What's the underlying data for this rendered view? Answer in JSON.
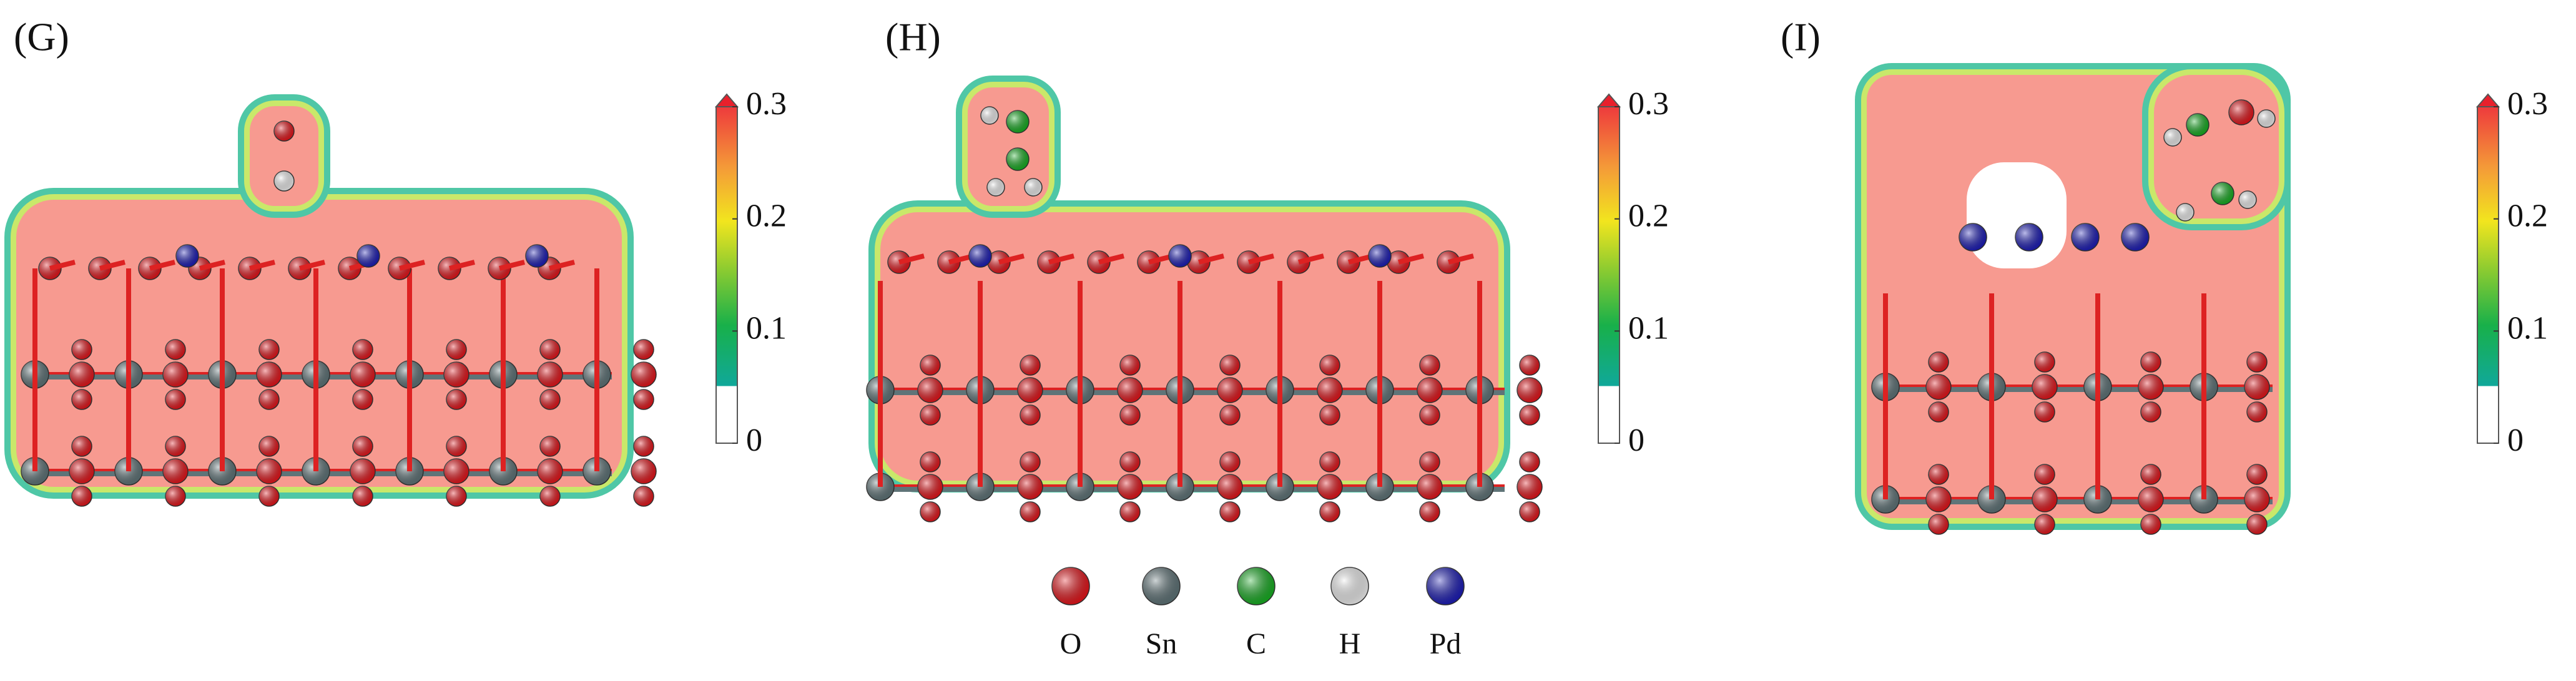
{
  "panels": [
    {
      "label": "(G)",
      "colorbar": {
        "clim": [
          0,
          0.3
        ],
        "ticks": [
          0,
          0.1,
          0.2,
          0.3
        ]
      }
    },
    {
      "label": "(H)",
      "colorbar": {
        "clim": [
          0,
          0.3
        ],
        "ticks": [
          0,
          0.1,
          0.2,
          0.3
        ]
      }
    },
    {
      "label": "(I)",
      "colorbar": {
        "clim": [
          0,
          0.3
        ],
        "ticks": [
          0,
          0.1,
          0.2,
          0.3
        ]
      }
    }
  ],
  "legend": [
    {
      "label": "O",
      "color": "#e8141a"
    },
    {
      "label": "Sn",
      "color": "#5f7478"
    },
    {
      "label": "C",
      "color": "#17b022"
    },
    {
      "label": "H",
      "color": "#f2f2f2"
    },
    {
      "label": "Pd",
      "color": "#1c1cb8"
    }
  ]
}
